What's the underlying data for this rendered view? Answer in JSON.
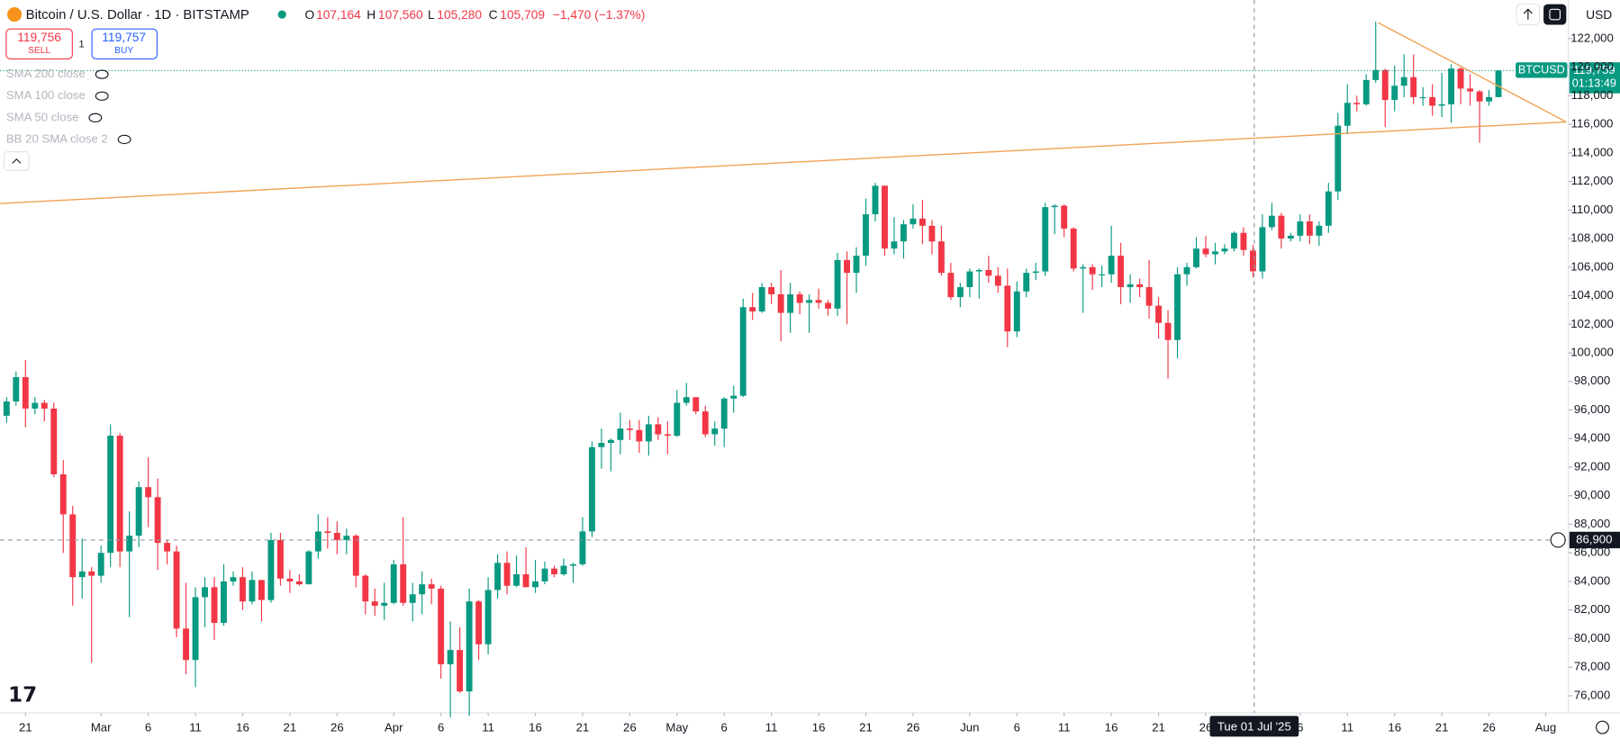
{
  "header": {
    "symbol": "Bitcoin / U.S. Dollar · 1D · BITSTAMP",
    "o": "O",
    "o_value": "107,164",
    "h": "H",
    "h_value": "107,560",
    "l": "L",
    "l_value": "105,280",
    "c": "C",
    "c_value": "105,709",
    "change": "−1,470 (−1.37%)",
    "currency": "USD"
  },
  "trade": {
    "sell_price": "119,756",
    "sell": "SELL",
    "spread": "1",
    "buy_price": "119,757",
    "buy": "BUY"
  },
  "indicators": [
    "SMA 200 close",
    "SMA 100 close",
    "SMA 50 close",
    "BB 20 SMA close 2"
  ],
  "price_tag": {
    "symbol": "BTCUSD",
    "price": "119,759",
    "countdown": "01:13:49"
  },
  "crosshair": {
    "price": {
      "value": 86900,
      "label": "86,900"
    },
    "date": "Tue 01 Jul '25"
  },
  "chart_data": {
    "type": "candlestick",
    "up_color": "#089981",
    "down_color": "#f23645",
    "xlim": [
      -0.7,
      165.4
    ],
    "ylim": [
      74800,
      124700
    ],
    "xticks": [
      {
        "value": 2,
        "label": "21"
      },
      {
        "value": 10,
        "label": "Mar"
      },
      {
        "value": 15,
        "label": "6"
      },
      {
        "value": 20,
        "label": "11"
      },
      {
        "value": 25,
        "label": "16"
      },
      {
        "value": 30,
        "label": "21"
      },
      {
        "value": 35,
        "label": "26"
      },
      {
        "value": 41,
        "label": "Apr"
      },
      {
        "value": 46,
        "label": "6"
      },
      {
        "value": 51,
        "label": "11"
      },
      {
        "value": 56,
        "label": "16"
      },
      {
        "value": 61,
        "label": "21"
      },
      {
        "value": 66,
        "label": "26"
      },
      {
        "value": 71,
        "label": "May"
      },
      {
        "value": 76,
        "label": "6"
      },
      {
        "value": 81,
        "label": "11"
      },
      {
        "value": 86,
        "label": "16"
      },
      {
        "value": 91,
        "label": "21"
      },
      {
        "value": 96,
        "label": "26"
      },
      {
        "value": 102,
        "label": "Jun"
      },
      {
        "value": 107,
        "label": "6"
      },
      {
        "value": 112,
        "label": "11"
      },
      {
        "value": 117,
        "label": "16"
      },
      {
        "value": 122,
        "label": "21"
      },
      {
        "value": 127,
        "label": "26"
      },
      {
        "value": 137,
        "label": "6"
      },
      {
        "value": 142,
        "label": "11"
      },
      {
        "value": 147,
        "label": "16"
      },
      {
        "value": 152,
        "label": "21"
      },
      {
        "value": 157,
        "label": "26"
      },
      {
        "value": 163,
        "label": "Aug"
      }
    ],
    "yticks": [
      {
        "value": 76000,
        "label": "76,000"
      },
      {
        "value": 78000,
        "label": "78,000"
      },
      {
        "value": 80000,
        "label": "80,000"
      },
      {
        "value": 82000,
        "label": "82,000"
      },
      {
        "value": 84000,
        "label": "84,000"
      },
      {
        "value": 86000,
        "label": "86,000"
      },
      {
        "value": 88000,
        "label": "88,000"
      },
      {
        "value": 90000,
        "label": "90,000"
      },
      {
        "value": 92000,
        "label": "92,000"
      },
      {
        "value": 94000,
        "label": "94,000"
      },
      {
        "value": 96000,
        "label": "96,000"
      },
      {
        "value": 98000,
        "label": "98,000"
      },
      {
        "value": 100000,
        "label": "100,000"
      },
      {
        "value": 102000,
        "label": "102,000"
      },
      {
        "value": 104000,
        "label": "104,000"
      },
      {
        "value": 106000,
        "label": "106,000"
      },
      {
        "value": 108000,
        "label": "108,000"
      },
      {
        "value": 110000,
        "label": "110,000"
      },
      {
        "value": 112000,
        "label": "112,000"
      },
      {
        "value": 114000,
        "label": "114,000"
      },
      {
        "value": 116000,
        "label": "116,000"
      },
      {
        "value": 118000,
        "label": "118,000"
      },
      {
        "value": 120000,
        "label": "120,000"
      },
      {
        "value": 122000,
        "label": "122,000"
      }
    ],
    "candles": [
      [
        95600,
        96900,
        95100,
        96600
      ],
      [
        96600,
        98700,
        96300,
        98300
      ],
      [
        98300,
        99500,
        94800,
        96100
      ],
      [
        96100,
        96900,
        95700,
        96500
      ],
      [
        96500,
        96700,
        95200,
        96100
      ],
      [
        96100,
        96500,
        91300,
        91500
      ],
      [
        91500,
        92500,
        86000,
        88700
      ],
      [
        88700,
        89300,
        82300,
        84300
      ],
      [
        84300,
        87000,
        82800,
        84700
      ],
      [
        84700,
        85000,
        78300,
        84400
      ],
      [
        84400,
        86500,
        83900,
        86000
      ],
      [
        86000,
        95000,
        85000,
        94200
      ],
      [
        94200,
        94400,
        85000,
        86100
      ],
      [
        86100,
        88900,
        81500,
        87200
      ],
      [
        87200,
        91000,
        86400,
        90600
      ],
      [
        90600,
        92700,
        87800,
        89900
      ],
      [
        89900,
        91200,
        84800,
        86700
      ],
      [
        86700,
        86900,
        85200,
        86100
      ],
      [
        86100,
        86500,
        80100,
        80700
      ],
      [
        80700,
        83900,
        77500,
        78500
      ],
      [
        78500,
        83600,
        76600,
        82900
      ],
      [
        82900,
        84300,
        80800,
        83600
      ],
      [
        83600,
        84300,
        79900,
        81100
      ],
      [
        81100,
        85200,
        80900,
        84000
      ],
      [
        84000,
        84700,
        83700,
        84300
      ],
      [
        84300,
        85000,
        82000,
        82600
      ],
      [
        82600,
        84700,
        82400,
        84100
      ],
      [
        84100,
        84100,
        81200,
        82700
      ],
      [
        82700,
        87400,
        82500,
        86900
      ],
      [
        86900,
        87400,
        83700,
        84200
      ],
      [
        84200,
        84800,
        83200,
        84000
      ],
      [
        84000,
        84500,
        83700,
        83800
      ],
      [
        83800,
        86200,
        83800,
        86100
      ],
      [
        86100,
        88700,
        85600,
        87500
      ],
      [
        87500,
        88500,
        86300,
        87400
      ],
      [
        87400,
        88200,
        85900,
        86900
      ],
      [
        86900,
        87700,
        85900,
        87200
      ],
      [
        87200,
        87300,
        83600,
        84400
      ],
      [
        84400,
        84500,
        81700,
        82600
      ],
      [
        82600,
        83500,
        81600,
        82300
      ],
      [
        82300,
        83900,
        81300,
        82500
      ],
      [
        82500,
        85500,
        82400,
        85200
      ],
      [
        85200,
        88500,
        82300,
        82500
      ],
      [
        82500,
        83900,
        81200,
        83100
      ],
      [
        83100,
        84700,
        81700,
        83800
      ],
      [
        83800,
        84200,
        82400,
        83500
      ],
      [
        83500,
        83700,
        77200,
        78200
      ],
      [
        78200,
        81200,
        74500,
        79200
      ],
      [
        79200,
        80800,
        76200,
        76300
      ],
      [
        76300,
        83500,
        74600,
        82600
      ],
      [
        82600,
        82700,
        78500,
        79600
      ],
      [
        79600,
        84300,
        78900,
        83400
      ],
      [
        83400,
        85900,
        82800,
        85300
      ],
      [
        85300,
        86100,
        83100,
        83700
      ],
      [
        83700,
        85800,
        83600,
        84500
      ],
      [
        84500,
        86400,
        83600,
        83600
      ],
      [
        83600,
        85500,
        83200,
        84000
      ],
      [
        84000,
        85400,
        83800,
        84900
      ],
      [
        84900,
        85100,
        84300,
        84500
      ],
      [
        84500,
        85600,
        84400,
        85100
      ],
      [
        85100,
        85300,
        83900,
        85200
      ],
      [
        85200,
        88500,
        85100,
        87500
      ],
      [
        87500,
        93800,
        87100,
        93400
      ],
      [
        93400,
        94700,
        91900,
        93700
      ],
      [
        93700,
        94000,
        91700,
        93900
      ],
      [
        93900,
        95800,
        92900,
        94700
      ],
      [
        94700,
        95300,
        93900,
        94600
      ],
      [
        94600,
        95300,
        93000,
        93800
      ],
      [
        93800,
        95600,
        92800,
        95000
      ],
      [
        95000,
        95500,
        93900,
        94300
      ],
      [
        94300,
        95200,
        92900,
        94200
      ],
      [
        94200,
        97400,
        94100,
        96500
      ],
      [
        96500,
        97900,
        96300,
        96900
      ],
      [
        96900,
        96900,
        95700,
        95900
      ],
      [
        95900,
        96300,
        94100,
        94300
      ],
      [
        94300,
        95200,
        93500,
        94700
      ],
      [
        94700,
        96900,
        93400,
        96800
      ],
      [
        96800,
        97700,
        95800,
        97000
      ],
      [
        97000,
        103800,
        96900,
        103200
      ],
      [
        103200,
        104200,
        102300,
        102900
      ],
      [
        102900,
        104900,
        102800,
        104600
      ],
      [
        104600,
        104900,
        103400,
        104100
      ],
      [
        104100,
        105800,
        100800,
        102800
      ],
      [
        102800,
        104900,
        101400,
        104100
      ],
      [
        104100,
        104300,
        102700,
        103500
      ],
      [
        103500,
        104100,
        101400,
        103700
      ],
      [
        103700,
        104500,
        103100,
        103500
      ],
      [
        103500,
        103700,
        102600,
        103100
      ],
      [
        103100,
        107000,
        102600,
        106500
      ],
      [
        106500,
        107100,
        102000,
        105600
      ],
      [
        105600,
        107400,
        104200,
        106800
      ],
      [
        106800,
        110800,
        106100,
        109700
      ],
      [
        109700,
        111900,
        109200,
        111700
      ],
      [
        111700,
        111700,
        106800,
        107300
      ],
      [
        107300,
        109500,
        106900,
        107800
      ],
      [
        107800,
        109300,
        106600,
        109000
      ],
      [
        109000,
        110400,
        108700,
        109400
      ],
      [
        109400,
        110700,
        107600,
        108900
      ],
      [
        108900,
        109300,
        106900,
        107800
      ],
      [
        107800,
        108900,
        105400,
        105600
      ],
      [
        105600,
        106300,
        103700,
        103900
      ],
      [
        103900,
        104900,
        103200,
        104600
      ],
      [
        104600,
        105900,
        103900,
        105700
      ],
      [
        105700,
        105900,
        103800,
        105800
      ],
      [
        105800,
        106800,
        104900,
        105400
      ],
      [
        105400,
        106000,
        104200,
        104700
      ],
      [
        104700,
        105900,
        100400,
        101500
      ],
      [
        101500,
        105000,
        101100,
        104300
      ],
      [
        104300,
        105900,
        103900,
        105600
      ],
      [
        105600,
        106300,
        105100,
        105700
      ],
      [
        105700,
        110500,
        105400,
        110200
      ],
      [
        110200,
        110400,
        108300,
        110300
      ],
      [
        110300,
        110400,
        108100,
        108700
      ],
      [
        108700,
        108800,
        105700,
        105900
      ],
      [
        105900,
        106200,
        102800,
        106000
      ],
      [
        106000,
        106200,
        104400,
        105500
      ],
      [
        105500,
        106100,
        104600,
        105500
      ],
      [
        105500,
        108900,
        104900,
        106800
      ],
      [
        106800,
        107700,
        103400,
        104600
      ],
      [
        104600,
        105500,
        103500,
        104800
      ],
      [
        104800,
        105200,
        103900,
        104600
      ],
      [
        104600,
        106500,
        102400,
        103300
      ],
      [
        103300,
        103900,
        101000,
        102100
      ],
      [
        102100,
        103000,
        98200,
        100900
      ],
      [
        100900,
        106000,
        99600,
        105500
      ],
      [
        105500,
        106300,
        104700,
        106000
      ],
      [
        106000,
        108100,
        105900,
        107300
      ],
      [
        107300,
        108200,
        106700,
        106900
      ],
      [
        106900,
        107700,
        106200,
        107100
      ],
      [
        107100,
        107600,
        106900,
        107300
      ],
      [
        107300,
        108500,
        107100,
        108400
      ],
      [
        108400,
        108800,
        106800,
        107200
      ],
      [
        107164,
        107560,
        105280,
        105709
      ],
      [
        105700,
        109700,
        105200,
        108800
      ],
      [
        108800,
        110500,
        108600,
        109600
      ],
      [
        109600,
        109800,
        107300,
        108000
      ],
      [
        108000,
        108400,
        107800,
        108200
      ],
      [
        108200,
        109700,
        107800,
        109200
      ],
      [
        109200,
        109700,
        107600,
        108200
      ],
      [
        108200,
        109200,
        107500,
        108900
      ],
      [
        108900,
        111900,
        108400,
        111300
      ],
      [
        111300,
        116800,
        110700,
        115900
      ],
      [
        115900,
        118800,
        115300,
        117500
      ],
      [
        117500,
        118000,
        116900,
        117400
      ],
      [
        117400,
        119500,
        117300,
        119100
      ],
      [
        119100,
        123200,
        118900,
        119800
      ],
      [
        119800,
        119900,
        115800,
        117700
      ],
      [
        117700,
        120100,
        116900,
        118700
      ],
      [
        118700,
        120900,
        117900,
        119300
      ],
      [
        119300,
        120900,
        117400,
        117900
      ],
      [
        117900,
        118600,
        117300,
        117900
      ],
      [
        117900,
        118800,
        116600,
        117300
      ],
      [
        117300,
        119600,
        116500,
        117400
      ],
      [
        117400,
        120200,
        116100,
        119900
      ],
      [
        119900,
        120000,
        117400,
        118500
      ],
      [
        118500,
        119500,
        117300,
        118300
      ],
      [
        118300,
        118400,
        114700,
        117600
      ],
      [
        117600,
        118400,
        117300,
        117900
      ],
      [
        117900,
        119800,
        117900,
        119759
      ]
    ]
  }
}
